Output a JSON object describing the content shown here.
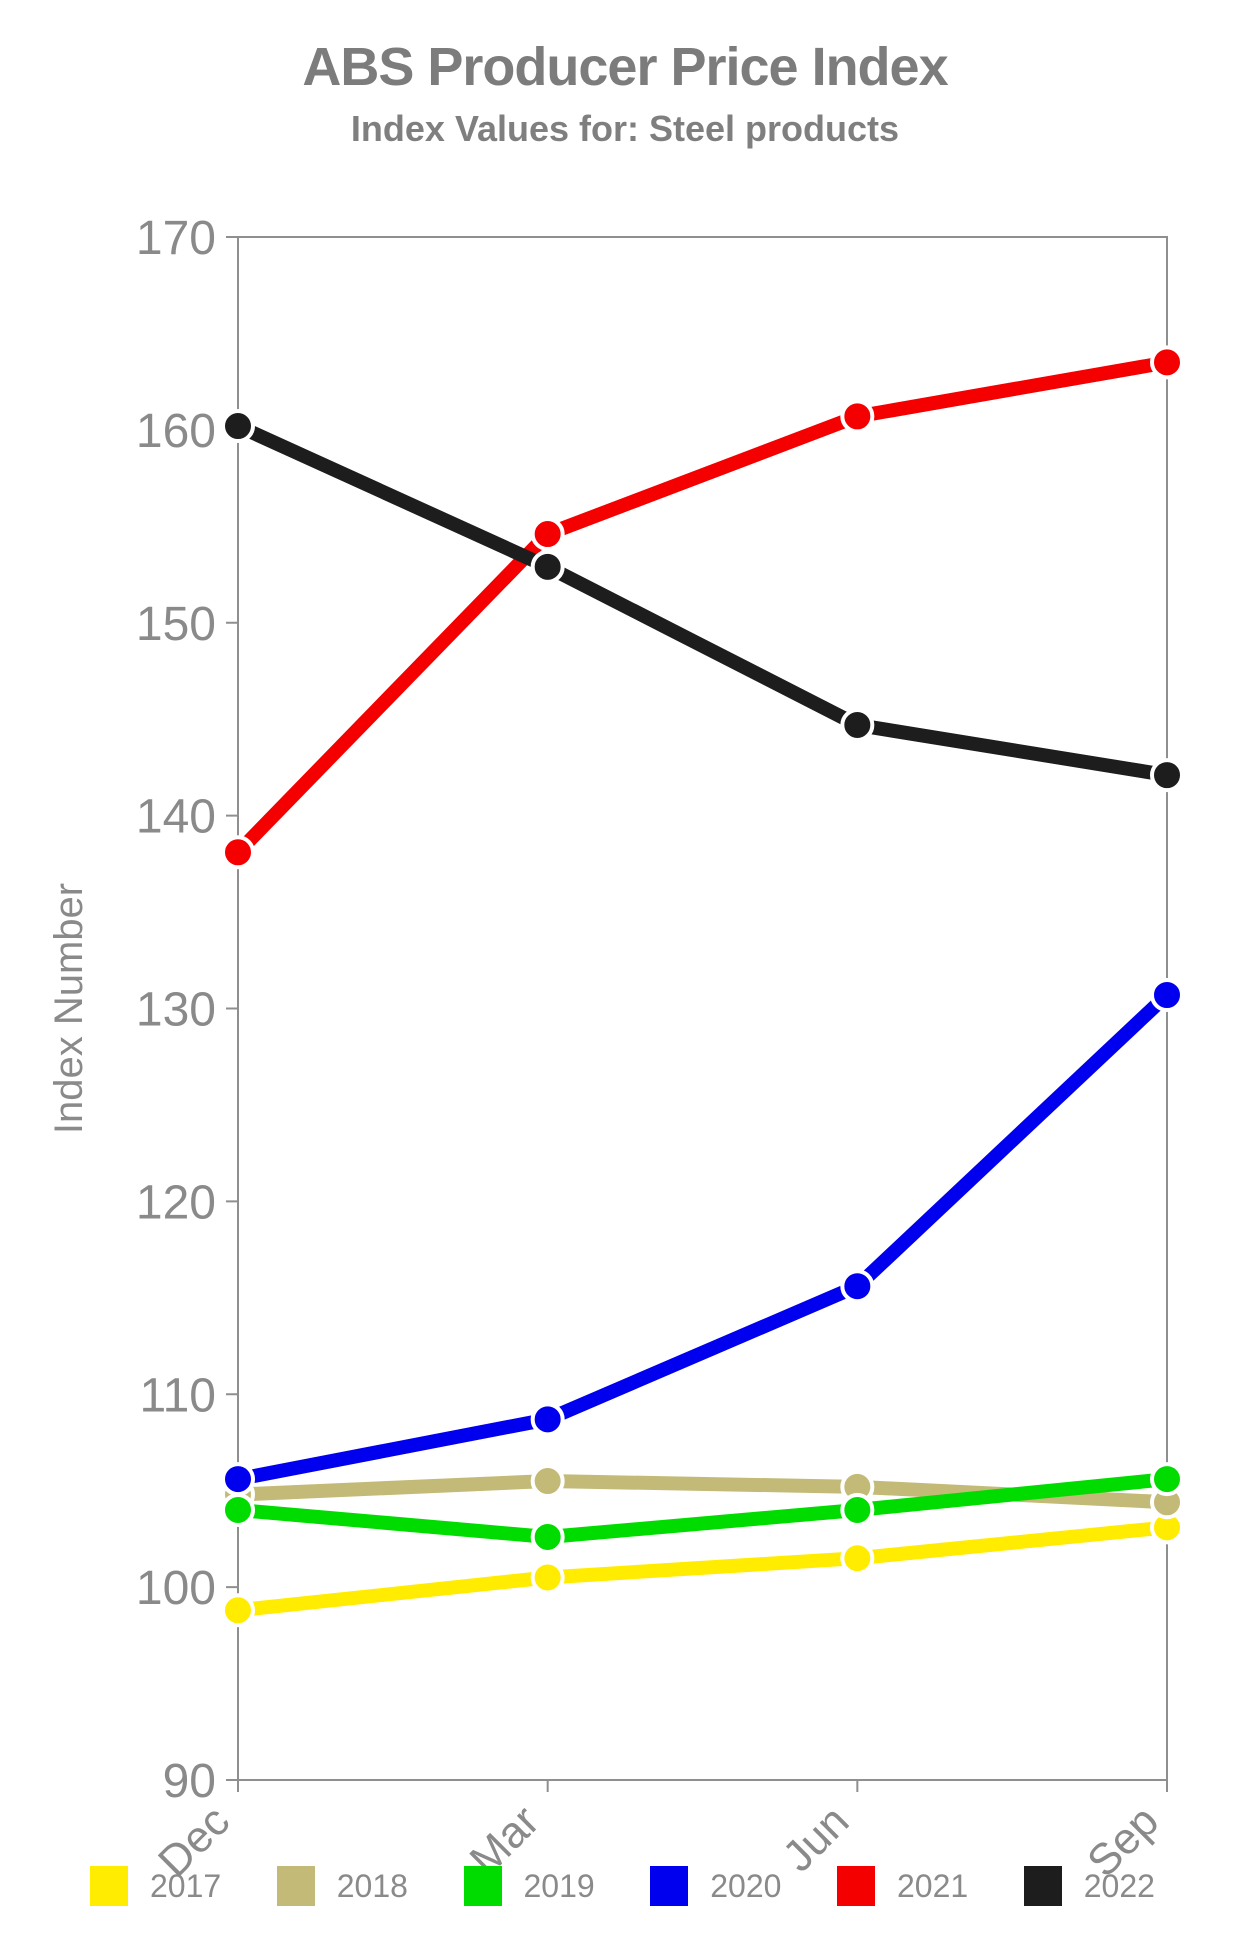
{
  "title": "ABS Producer Price Index",
  "subtitle": "Index Values for: Steel products",
  "chart_data": {
    "type": "line",
    "title": "ABS Producer Price Index",
    "subtitle": "Index Values for: Steel products",
    "xlabel": "",
    "ylabel": "Index Number",
    "categories": [
      "Dec",
      "Mar",
      "Jun",
      "Sep"
    ],
    "ylim": [
      90,
      170
    ],
    "yticks": [
      90,
      100,
      110,
      120,
      130,
      140,
      150,
      160,
      170
    ],
    "grid": false,
    "legend_position": "bottom",
    "marker": "circle",
    "series": [
      {
        "name": "2017",
        "color": "#ffec00",
        "values": [
          98.8,
          100.5,
          101.5,
          103.1
        ]
      },
      {
        "name": "2018",
        "color": "#c3ba77",
        "values": [
          104.8,
          105.5,
          105.2,
          104.4
        ]
      },
      {
        "name": "2019",
        "color": "#00dc00",
        "values": [
          104.0,
          102.6,
          104.0,
          105.6
        ]
      },
      {
        "name": "2020",
        "color": "#0000ee",
        "values": [
          105.6,
          108.7,
          115.6,
          130.7
        ]
      },
      {
        "name": "2021",
        "color": "#f40000",
        "values": [
          138.1,
          154.6,
          160.7,
          163.5
        ]
      },
      {
        "name": "2022",
        "color": "#1d1d1d",
        "values": [
          160.2,
          152.9,
          144.7,
          142.1
        ]
      }
    ],
    "colors": {
      "axis": "#8f8f8f",
      "tick_text": "#8a8a8a",
      "title_text": "#7c7c7c",
      "background": "#ffffff",
      "marker_outline": "#ffffff"
    }
  }
}
